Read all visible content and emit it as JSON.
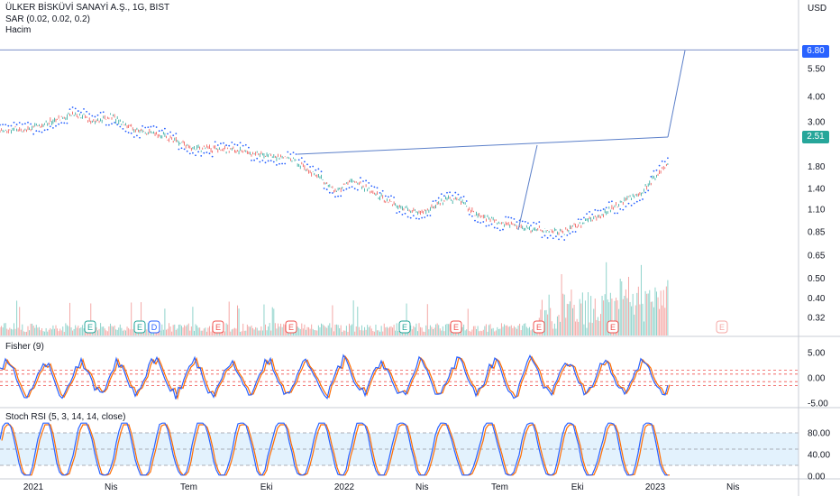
{
  "header": {
    "symbol_line": "ÜLKER BİSKÜVİ SANAYİ A.Ş., 1G, BIST",
    "sar_label": "SAR (0.02, 0.02, 0.2)",
    "volume_label": "Hacim"
  },
  "price_axis": {
    "currency": "USD",
    "ticks": [
      "5.50",
      "4.00",
      "3.00",
      "1.80",
      "1.40",
      "1.10",
      "0.85",
      "0.65",
      "0.50",
      "0.40",
      "0.32"
    ],
    "ticks_values": [
      5.5,
      4.0,
      3.0,
      1.8,
      1.4,
      1.1,
      0.85,
      0.65,
      0.5,
      0.4,
      0.32
    ],
    "log_scale": true,
    "target_label": "6.80",
    "last_label": "2.51",
    "target_value": 6.8,
    "last_value": 2.51
  },
  "time_axis": {
    "labels": [
      "2021",
      "Nis",
      "Tem",
      "Eki",
      "2022",
      "Nis",
      "Tem",
      "Eki",
      "2023",
      "Nis"
    ]
  },
  "events": [
    {
      "label": "E",
      "kind": "earnings-green"
    },
    {
      "label": "E",
      "kind": "earnings-green"
    },
    {
      "label": "D",
      "kind": "dividend"
    },
    {
      "label": "E",
      "kind": "earnings-red"
    },
    {
      "label": "E",
      "kind": "earnings-red"
    },
    {
      "label": "E",
      "kind": "earnings-green"
    },
    {
      "label": "E",
      "kind": "earnings-red"
    },
    {
      "label": "E",
      "kind": "earnings-red"
    },
    {
      "label": "E",
      "kind": "earnings-red"
    },
    {
      "label": "E",
      "kind": "earnings-future"
    }
  ],
  "fisher": {
    "label": "Fisher (9)",
    "ticks": [
      "5.00",
      "0.00",
      "-5.00"
    ],
    "ticks_values": [
      5,
      0,
      -5
    ]
  },
  "stoch": {
    "label": "Stoch RSI (5, 3, 14, 14, close)",
    "ticks": [
      "80.00",
      "40.00",
      "0.00"
    ],
    "ticks_values": [
      80,
      40,
      0
    ],
    "band": [
      20,
      80
    ]
  },
  "colors": {
    "up": "#26a69a",
    "down": "#ef5350",
    "line": "#2962ff",
    "drawing": "#5b7fc9",
    "fisher1": "#2962ff",
    "fisher2": "#ff6d00",
    "stoch_band": "#e3f2fd"
  },
  "chart_data": {
    "type": "line",
    "title": "ÜLKER BİSKÜVİ SANAYİ A.Ş., 1G, BIST",
    "x": [
      "2021-01",
      "2021-04",
      "2021-07",
      "2021-10",
      "2022-01",
      "2022-04",
      "2022-07",
      "2022-10",
      "2023-01"
    ],
    "series": [
      {
        "values": [
          2.75,
          2.85,
          2.35,
          2.05,
          1.3,
          1.05,
          0.86,
          1.15,
          2.51
        ]
      }
    ],
    "ylabel": "USD",
    "ylim": [
      0.29,
      8.5
    ]
  }
}
